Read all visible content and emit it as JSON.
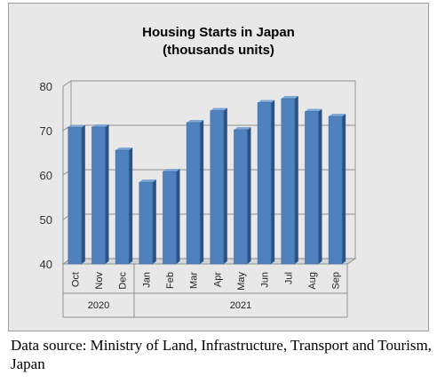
{
  "chart_data": {
    "type": "bar",
    "title_lines": [
      "Housing Starts in Japan",
      "(thousands units)"
    ],
    "categories": [
      "Oct",
      "Nov",
      "Dec",
      "Jan",
      "Feb",
      "Mar",
      "Apr",
      "May",
      "Jun",
      "Jul",
      "Aug",
      "Sep"
    ],
    "groups": [
      {
        "label": "2020",
        "count": 3
      },
      {
        "label": "2021",
        "count": 9
      }
    ],
    "values": [
      70.7,
      70.8,
      65.6,
      58.4,
      60.8,
      71.8,
      74.5,
      70.2,
      76.3,
      77.2,
      74.3,
      73.2
    ],
    "ylim": [
      40,
      80
    ],
    "yticks": [
      40,
      50,
      60,
      70,
      80
    ],
    "grid": true,
    "legend": "none",
    "xlabel": "",
    "ylabel": "",
    "colors": {
      "bar_front": "#4f81bd",
      "bar_side": "#2c5283",
      "bar_top": "#7fa7d6",
      "background": "#e8e8e8"
    }
  },
  "source_note": "Data source: Ministry of Land, Infrastructure, Transport and Tourism, Japan"
}
